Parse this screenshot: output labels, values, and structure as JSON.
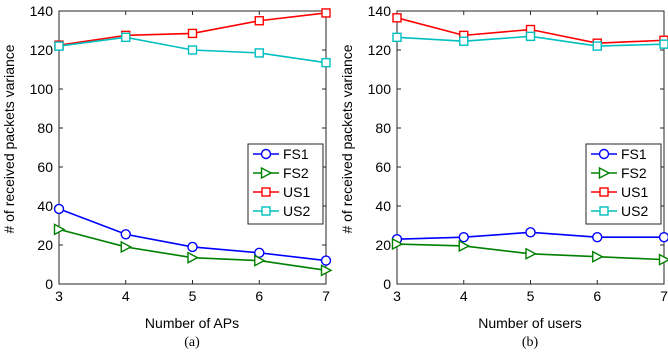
{
  "chart_data": [
    {
      "type": "line",
      "caption": "(a)",
      "xlabel": "Number of APs",
      "ylabel": "# of received packets variance",
      "x": [
        3,
        4,
        5,
        6,
        7
      ],
      "xlim": [
        3,
        7
      ],
      "ylim": [
        0,
        140
      ],
      "xticks": [
        3,
        4,
        5,
        6,
        7
      ],
      "yticks": [
        0,
        20,
        40,
        60,
        80,
        100,
        120,
        140
      ],
      "grid": false,
      "legend_position": "center-right",
      "series": [
        {
          "name": "FS1",
          "color": "#0000ff",
          "marker": "circle",
          "values": [
            38.5,
            25.5,
            19.0,
            16.0,
            12.0
          ]
        },
        {
          "name": "FS2",
          "color": "#008000",
          "marker": "triangle-right",
          "values": [
            28.0,
            19.0,
            13.5,
            12.0,
            7.0
          ]
        },
        {
          "name": "US1",
          "color": "#ff0000",
          "marker": "square",
          "values": [
            122.5,
            127.5,
            128.5,
            135.0,
            139.0
          ]
        },
        {
          "name": "US2",
          "color": "#00bfbf",
          "marker": "square",
          "values": [
            122.0,
            126.5,
            120.0,
            118.5,
            113.5
          ]
        }
      ]
    },
    {
      "type": "line",
      "caption": "(b)",
      "xlabel": "Number of users",
      "ylabel": "# of received packets variance",
      "x": [
        3,
        4,
        5,
        6,
        7
      ],
      "xlim": [
        3,
        7
      ],
      "ylim": [
        0,
        140
      ],
      "xticks": [
        3,
        4,
        5,
        6,
        7
      ],
      "yticks": [
        0,
        20,
        40,
        60,
        80,
        100,
        120,
        140
      ],
      "grid": false,
      "legend_position": "center-right",
      "series": [
        {
          "name": "FS1",
          "color": "#0000ff",
          "marker": "circle",
          "values": [
            23.0,
            24.0,
            26.5,
            24.0,
            24.0
          ]
        },
        {
          "name": "FS2",
          "color": "#008000",
          "marker": "triangle-right",
          "values": [
            20.5,
            19.5,
            15.5,
            14.0,
            12.5
          ]
        },
        {
          "name": "US1",
          "color": "#ff0000",
          "marker": "square",
          "values": [
            136.5,
            127.5,
            130.5,
            123.5,
            125.0
          ]
        },
        {
          "name": "US2",
          "color": "#00bfbf",
          "marker": "square",
          "values": [
            126.5,
            124.5,
            127.0,
            122.0,
            123.0
          ]
        }
      ]
    }
  ]
}
